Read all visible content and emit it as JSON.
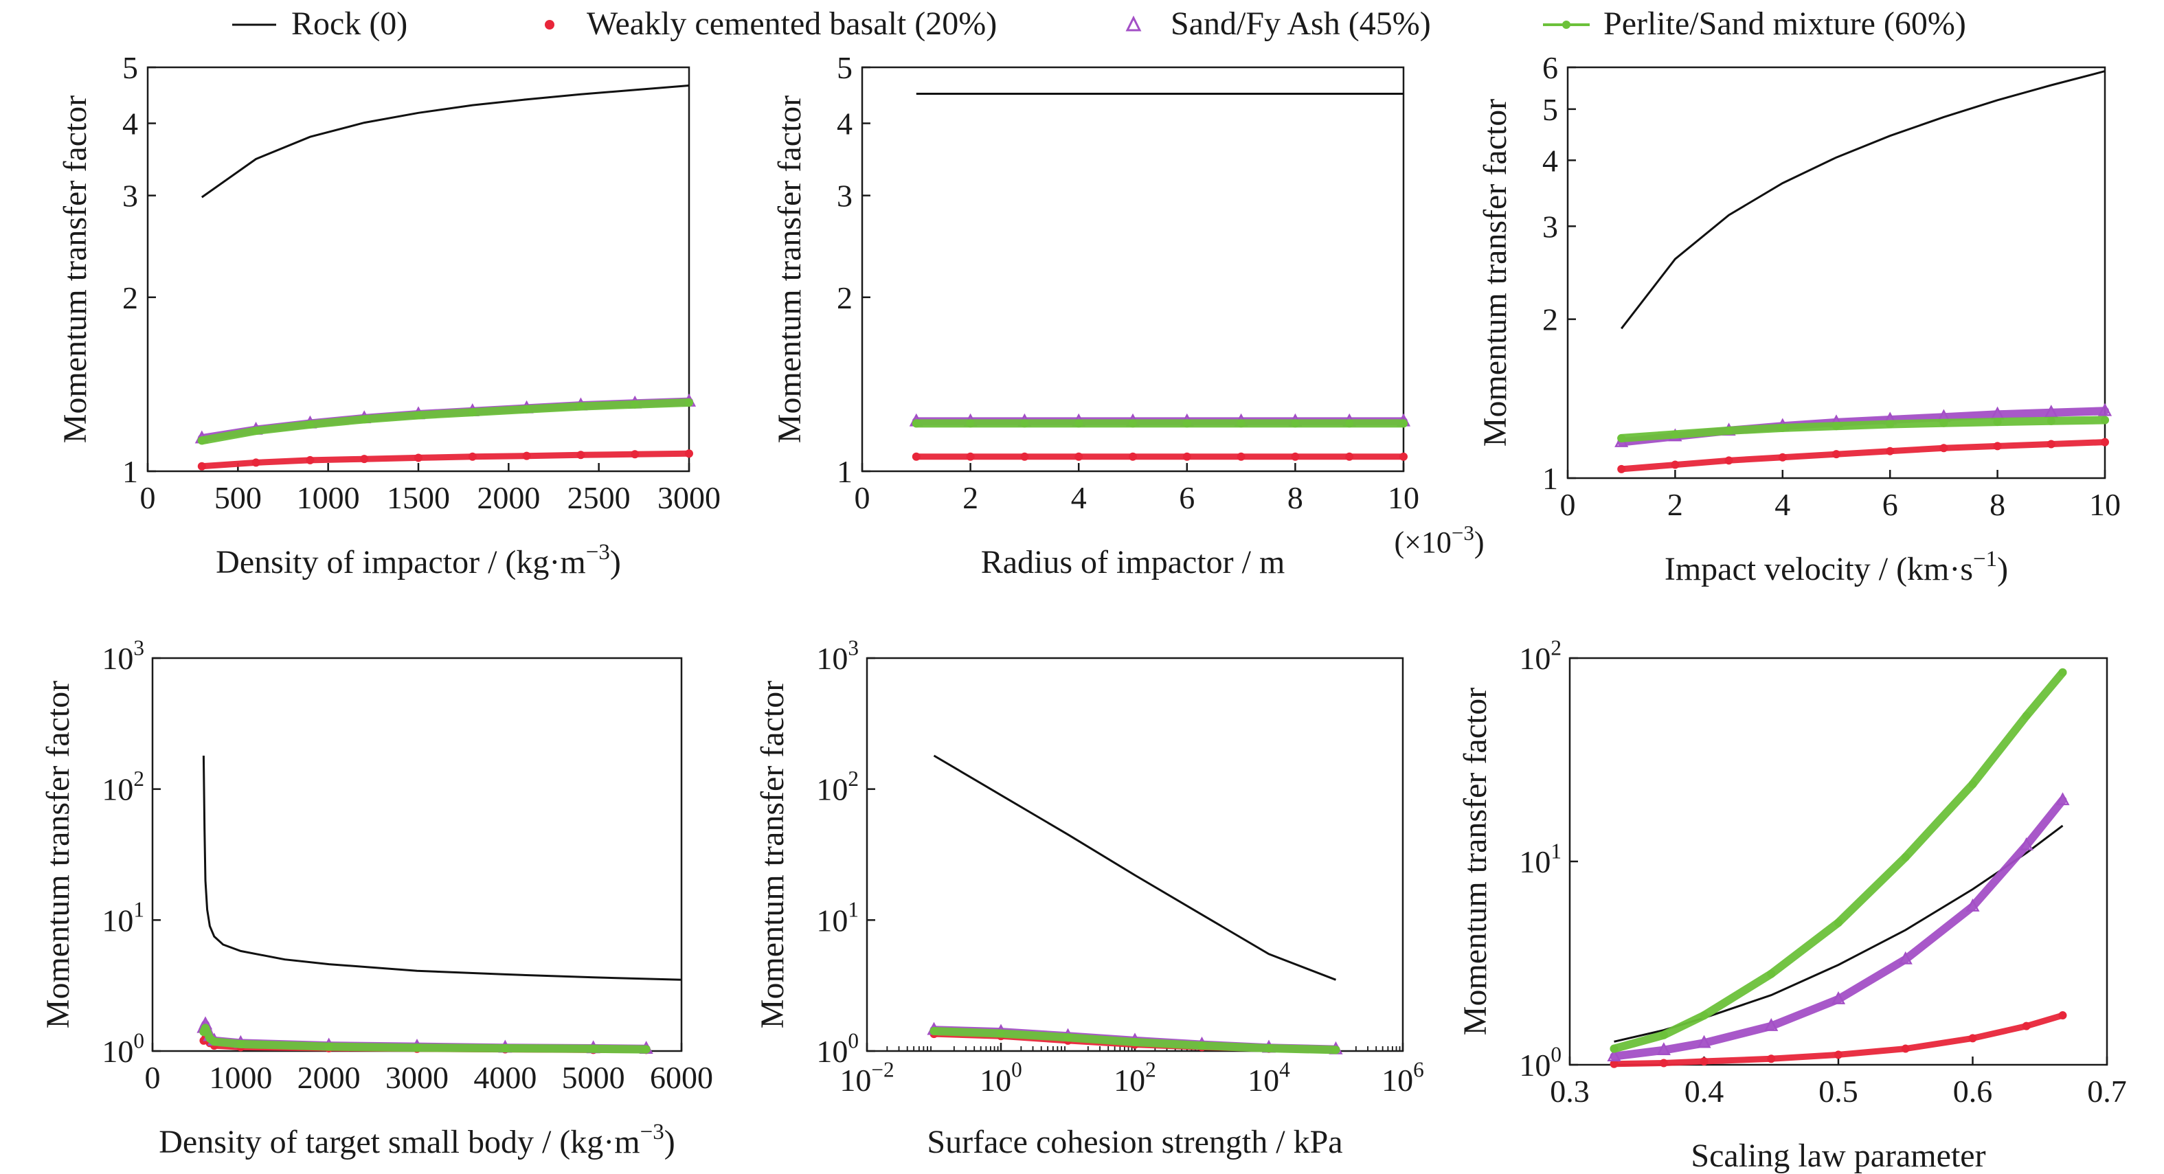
{
  "legend": [
    {
      "label": "Rock (0)",
      "color": "#111111",
      "marker": "none"
    },
    {
      "label": "Weakly cemented basalt (20%)",
      "color": "#e8263a",
      "marker": "dot"
    },
    {
      "label": "Sand/Fy Ash (45%)",
      "color": "#a34fc6",
      "marker": "triangle"
    },
    {
      "label": "Perlite/Sand mixture (60%)",
      "color": "#6cc13a",
      "marker": "dot-line"
    }
  ],
  "chart_data": [
    {
      "type": "line",
      "yscale": "log",
      "grid": false,
      "xlabel": "Density of impactor / (kg·m",
      "xlabel_sup": "−3",
      "xlabel_end": ")",
      "ylabel": "Momentum transfer factor",
      "xlim": [
        0,
        3000
      ],
      "ylim": [
        1,
        5
      ],
      "xticks": [
        "0",
        "500",
        "1000",
        "1500",
        "2000",
        "2500",
        "3000"
      ],
      "yticks": [
        "1",
        "2",
        "3",
        "4",
        "5"
      ],
      "x": [
        300,
        600,
        900,
        1200,
        1500,
        1800,
        2100,
        2400,
        2700,
        3000
      ],
      "series": [
        {
          "name": "Rock (0)",
          "values": [
            2.98,
            3.47,
            3.79,
            4.01,
            4.17,
            4.3,
            4.4,
            4.49,
            4.57,
            4.65
          ]
        },
        {
          "name": "Weakly cemented basalt (20%)",
          "values": [
            1.02,
            1.035,
            1.045,
            1.05,
            1.055,
            1.06,
            1.063,
            1.067,
            1.07,
            1.073
          ]
        },
        {
          "name": "Sand/Fy Ash (45%)",
          "values": [
            1.14,
            1.18,
            1.21,
            1.235,
            1.255,
            1.27,
            1.285,
            1.3,
            1.31,
            1.32
          ]
        },
        {
          "name": "Perlite/Sand mixture (60%)",
          "values": [
            1.13,
            1.175,
            1.205,
            1.23,
            1.25,
            1.265,
            1.28,
            1.295,
            1.305,
            1.315
          ]
        }
      ]
    },
    {
      "type": "line",
      "yscale": "log",
      "grid": false,
      "xlabel": "Radius of impactor / m",
      "xlabel_sup": "",
      "xlabel_end": "",
      "ylabel": "Momentum transfer factor",
      "axis_multiplier": "(×10",
      "axis_multiplier_sup": "−3",
      "axis_multiplier_end": ")",
      "xlim": [
        0,
        10
      ],
      "ylim": [
        1,
        5
      ],
      "xticks": [
        "0",
        "2",
        "4",
        "6",
        "8",
        "10"
      ],
      "yticks": [
        "1",
        "2",
        "3",
        "4",
        "5"
      ],
      "x": [
        1,
        2,
        3,
        4,
        5,
        6,
        7,
        8,
        9,
        10
      ],
      "series": [
        {
          "name": "Rock (0)",
          "values": [
            4.5,
            4.5,
            4.5,
            4.5,
            4.5,
            4.5,
            4.5,
            4.5,
            4.5,
            4.5
          ]
        },
        {
          "name": "Weakly cemented basalt (20%)",
          "values": [
            1.06,
            1.06,
            1.06,
            1.06,
            1.06,
            1.06,
            1.06,
            1.06,
            1.06,
            1.06
          ]
        },
        {
          "name": "Sand/Fy Ash (45%)",
          "values": [
            1.22,
            1.22,
            1.22,
            1.22,
            1.22,
            1.22,
            1.22,
            1.22,
            1.22,
            1.22
          ]
        },
        {
          "name": "Perlite/Sand mixture (60%)",
          "values": [
            1.21,
            1.21,
            1.21,
            1.21,
            1.21,
            1.21,
            1.21,
            1.21,
            1.21,
            1.21
          ]
        }
      ]
    },
    {
      "type": "line",
      "yscale": "log",
      "grid": false,
      "xlabel": "Impact velocity / (km·s",
      "xlabel_sup": "−1",
      "xlabel_end": ")",
      "ylabel": "Momentum transfer factor",
      "xlim": [
        0,
        10
      ],
      "ylim": [
        1,
        6
      ],
      "xticks": [
        "0",
        "2",
        "4",
        "6",
        "8",
        "10"
      ],
      "yticks": [
        "1",
        "2",
        "3",
        "4",
        "5",
        "6"
      ],
      "x": [
        1,
        2,
        3,
        4,
        5,
        6,
        7,
        8,
        9,
        10
      ],
      "series": [
        {
          "name": "Rock (0)",
          "values": [
            1.92,
            2.6,
            3.15,
            3.62,
            4.05,
            4.45,
            4.83,
            5.2,
            5.55,
            5.9
          ]
        },
        {
          "name": "Weakly cemented basalt (20%)",
          "values": [
            1.04,
            1.06,
            1.08,
            1.095,
            1.11,
            1.125,
            1.14,
            1.15,
            1.16,
            1.17
          ]
        },
        {
          "name": "Sand/Fy Ash (45%)",
          "values": [
            1.17,
            1.2,
            1.23,
            1.255,
            1.275,
            1.29,
            1.305,
            1.32,
            1.33,
            1.34
          ]
        },
        {
          "name": "Perlite/Sand mixture (60%)",
          "values": [
            1.19,
            1.21,
            1.23,
            1.245,
            1.255,
            1.265,
            1.272,
            1.278,
            1.283,
            1.288
          ]
        }
      ]
    },
    {
      "type": "line",
      "yscale": "log",
      "grid": false,
      "xlabel": "Density of target small body / (kg·m",
      "xlabel_sup": "−3",
      "xlabel_end": ")",
      "ylabel": "Momentum transfer factor",
      "xlim": [
        0,
        6000
      ],
      "ylim": [
        1,
        1000
      ],
      "xticks": [
        "0",
        "1000",
        "2000",
        "3000",
        "4000",
        "5000",
        "6000"
      ],
      "yticks_base": [
        "10",
        "10",
        "10",
        "10"
      ],
      "yticks_exp": [
        "0",
        "1",
        "2",
        "3"
      ],
      "series": [
        {
          "name": "Rock (0)",
          "x": [
            580,
            590,
            600,
            620,
            650,
            700,
            800,
            1000,
            1500,
            2000,
            3000,
            4000,
            5000,
            6000
          ],
          "values": [
            180,
            50,
            20,
            12,
            9,
            7.5,
            6.5,
            5.8,
            5.0,
            4.6,
            4.1,
            3.85,
            3.65,
            3.5
          ]
        },
        {
          "name": "Weakly cemented basalt (20%)",
          "x": [
            580,
            600,
            650,
            700,
            1000,
            2000,
            3000,
            4000,
            5000,
            5600
          ],
          "values": [
            1.2,
            1.25,
            1.15,
            1.1,
            1.07,
            1.05,
            1.04,
            1.03,
            1.02,
            1.02
          ]
        },
        {
          "name": "Sand/Fy Ash (45%)",
          "x": [
            580,
            600,
            650,
            700,
            1000,
            2000,
            3000,
            4000,
            5000,
            5600
          ],
          "values": [
            1.5,
            1.6,
            1.3,
            1.2,
            1.15,
            1.1,
            1.08,
            1.06,
            1.05,
            1.04
          ]
        },
        {
          "name": "Perlite/Sand mixture (60%)",
          "x": [
            580,
            600,
            650,
            700,
            1000,
            2000,
            3000,
            4000,
            5000,
            5600
          ],
          "values": [
            1.4,
            1.5,
            1.25,
            1.18,
            1.13,
            1.08,
            1.06,
            1.05,
            1.04,
            1.03
          ]
        }
      ]
    },
    {
      "type": "line",
      "yscale": "log",
      "xscale": "log",
      "grid": false,
      "xlabel": "Surface cohesion strength / kPa",
      "xlabel_sup": "",
      "xlabel_end": "",
      "ylabel": "Momentum transfer factor",
      "xlim": [
        0.01,
        1000000
      ],
      "ylim": [
        1,
        1000
      ],
      "xticks_base": [
        "10",
        "10",
        "10",
        "10",
        "10"
      ],
      "xticks_exp": [
        "−2",
        "0",
        "2",
        "4",
        "6"
      ],
      "yticks_base": [
        "10",
        "10",
        "10",
        "10"
      ],
      "yticks_exp": [
        "0",
        "1",
        "2",
        "3"
      ],
      "series": [
        {
          "name": "Rock (0)",
          "x": [
            0.1,
            1,
            10,
            100,
            1000,
            10000,
            100000
          ],
          "values": [
            180,
            90,
            45,
            22,
            11,
            5.5,
            3.5
          ]
        },
        {
          "name": "Weakly cemented basalt (20%)",
          "x": [
            0.1,
            1,
            10,
            100,
            1000,
            10000,
            100000
          ],
          "values": [
            1.35,
            1.3,
            1.2,
            1.12,
            1.07,
            1.04,
            1.02
          ]
        },
        {
          "name": "Sand/Fy Ash (45%)",
          "x": [
            0.1,
            1,
            10,
            100,
            1000,
            10000,
            100000
          ],
          "values": [
            1.45,
            1.4,
            1.3,
            1.2,
            1.12,
            1.06,
            1.03
          ]
        },
        {
          "name": "Perlite/Sand mixture (60%)",
          "x": [
            0.1,
            1,
            10,
            100,
            1000,
            10000,
            100000
          ],
          "values": [
            1.42,
            1.36,
            1.27,
            1.17,
            1.1,
            1.05,
            1.02
          ]
        }
      ]
    },
    {
      "type": "line",
      "yscale": "log",
      "grid": false,
      "xlabel": "Scaling law parameter",
      "xlabel_sup": "",
      "xlabel_end": "",
      "ylabel": "Momentum transfer factor",
      "xlim": [
        0.3,
        0.7
      ],
      "ylim": [
        1,
        100
      ],
      "xticks": [
        "0.3",
        "0.4",
        "0.5",
        "0.6",
        "0.7"
      ],
      "yticks_base": [
        "10",
        "10",
        "10"
      ],
      "yticks_exp": [
        "0",
        "1",
        "2"
      ],
      "x": [
        0.333,
        0.37,
        0.4,
        0.45,
        0.5,
        0.55,
        0.6,
        0.64,
        0.667
      ],
      "series": [
        {
          "name": "Rock (0)",
          "values": [
            1.3,
            1.48,
            1.7,
            2.2,
            3.1,
            4.6,
            7.3,
            11,
            15
          ]
        },
        {
          "name": "Weakly cemented basalt (20%)",
          "values": [
            1.01,
            1.02,
            1.04,
            1.07,
            1.12,
            1.2,
            1.35,
            1.55,
            1.75
          ]
        },
        {
          "name": "Sand/Fy Ash (45%)",
          "values": [
            1.1,
            1.18,
            1.28,
            1.55,
            2.1,
            3.3,
            6.0,
            12,
            20
          ]
        },
        {
          "name": "Perlite/Sand mixture (60%)",
          "values": [
            1.2,
            1.4,
            1.75,
            2.8,
            5.0,
            10.5,
            24,
            52,
            85
          ]
        }
      ]
    }
  ]
}
